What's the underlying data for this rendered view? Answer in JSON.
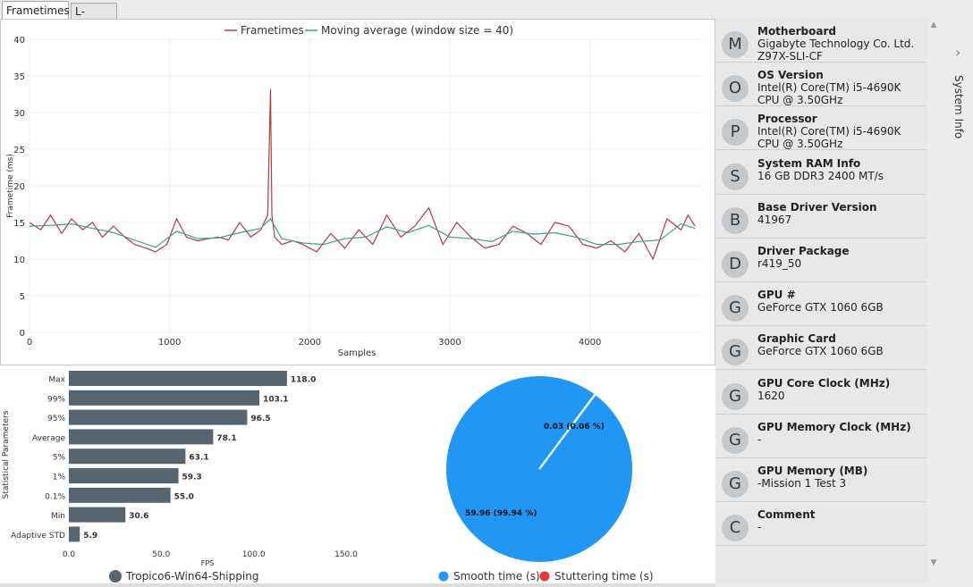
{
  "tabs": [
    {
      "label": "Frametimes",
      "active": true
    },
    {
      "label": "L-shape",
      "active": false
    }
  ],
  "frametime_chart": {
    "type": "line",
    "legend": [
      "Frametimes",
      "Moving average (window size = 40)"
    ],
    "colors": {
      "frametimes": "#b23a48",
      "moving_avg": "#3aa28a"
    },
    "xlabel": "Samples",
    "ylabel": "Frametime (ms)",
    "xlim": [
      0,
      4800
    ],
    "ylim": [
      0,
      40
    ],
    "xticks": [
      "0",
      "1000",
      "2000",
      "3000",
      "4000"
    ],
    "yticks": [
      "0",
      "5",
      "10",
      "15",
      "20",
      "25",
      "30",
      "35",
      "40"
    ],
    "x_values": [
      0,
      1000,
      2000,
      3000,
      4000
    ]
  },
  "chart_data": [
    {
      "type": "line",
      "title": "",
      "xlabel": "Samples",
      "ylabel": "Frametime (ms)",
      "xlim": [
        0,
        4800
      ],
      "ylim": [
        0,
        40
      ],
      "series": [
        {
          "name": "Frametimes",
          "x": [
            0,
            80,
            150,
            230,
            300,
            380,
            450,
            520,
            600,
            680,
            750,
            830,
            900,
            980,
            1050,
            1120,
            1200,
            1280,
            1350,
            1420,
            1500,
            1580,
            1650,
            1700,
            1720,
            1730,
            1750,
            1800,
            1880,
            1950,
            2050,
            2150,
            2250,
            2350,
            2450,
            2550,
            2650,
            2750,
            2850,
            2950,
            3050,
            3150,
            3250,
            3350,
            3450,
            3550,
            3650,
            3750,
            3850,
            3950,
            4050,
            4150,
            4250,
            4350,
            4450,
            4550,
            4650,
            4700,
            4750
          ],
          "values": [
            15,
            14,
            16,
            13.5,
            15.5,
            14,
            15,
            13,
            14.5,
            13,
            12,
            11.5,
            11,
            12,
            15.5,
            13,
            12.5,
            12.8,
            13,
            12.6,
            15,
            13,
            14,
            16,
            33.2,
            16,
            13,
            12,
            12.5,
            12,
            11,
            13.5,
            11.5,
            14,
            12,
            16,
            13,
            14.5,
            17,
            12,
            15,
            13,
            11.5,
            12,
            14.5,
            13.5,
            12,
            15,
            14.5,
            12,
            11.5,
            12.5,
            11,
            13.5,
            10,
            15.5,
            14,
            16,
            14.5
          ]
        },
        {
          "name": "Moving average (window size = 40)",
          "x": [
            0,
            150,
            300,
            450,
            600,
            750,
            900,
            1050,
            1200,
            1350,
            1500,
            1650,
            1720,
            1800,
            1950,
            2100,
            2250,
            2400,
            2550,
            2700,
            2850,
            3000,
            3150,
            3300,
            3450,
            3600,
            3750,
            3900,
            4050,
            4200,
            4350,
            4500,
            4650,
            4750
          ],
          "values": [
            14.5,
            14.6,
            14.8,
            14.2,
            13.6,
            12.6,
            11.6,
            13.8,
            12.8,
            12.9,
            13.6,
            14.2,
            15.5,
            12.8,
            12.2,
            12,
            12.8,
            13,
            14.4,
            13.6,
            14.6,
            13,
            12.8,
            12.4,
            13.8,
            13.4,
            13.6,
            13,
            12,
            12,
            12.4,
            12.6,
            14.8,
            14.2
          ]
        }
      ]
    },
    {
      "type": "bar",
      "orientation": "horizontal",
      "title": "",
      "xlabel": "FPS",
      "ylabel": "Statistical Parameters",
      "xlim": [
        0,
        150
      ],
      "xticks": [
        "0.0",
        "50.0",
        "100.0",
        "150.0"
      ],
      "categories": [
        "Max",
        "99%",
        "95%",
        "Average",
        "5%",
        "1%",
        "0.1%",
        "Min",
        "Adaptive STD"
      ],
      "values": [
        118.0,
        103.1,
        96.5,
        78.1,
        63.1,
        59.3,
        55.0,
        30.6,
        5.9
      ],
      "value_labels": [
        "118.0",
        "103.1",
        "96.5",
        "78.1",
        "63.1",
        "59.3",
        "55.0",
        "30.6",
        "5.9"
      ],
      "series_name": "Tropico6-Win64-Shipping",
      "color": "#566571"
    },
    {
      "type": "pie",
      "title": "",
      "categories": [
        "Smooth time (s)",
        "Stuttering time (s)"
      ],
      "values": [
        59.96,
        0.03
      ],
      "labels": [
        "59.96 (99.94 %)",
        "0.03 (0.06 %)"
      ],
      "colors": [
        "#2196f3",
        "#e53935"
      ]
    }
  ],
  "bar_legend": "Tropico6-Win64-Shipping",
  "pie_legend": [
    "Smooth time (s)",
    "Stuttering time (s)"
  ],
  "system_info": {
    "label": "System Info",
    "items": [
      {
        "initial": "M",
        "title": "Motherboard",
        "value": "Gigabyte Technology Co. Ltd. Z97X-SLI-CF"
      },
      {
        "initial": "O",
        "title": "OS Version",
        "value": "Intel(R) Core(TM) i5-4690K CPU @ 3.50GHz"
      },
      {
        "initial": "P",
        "title": "Processor",
        "value": "Intel(R) Core(TM) i5-4690K CPU @ 3.50GHz"
      },
      {
        "initial": "S",
        "title": "System RAM Info",
        "value": "16 GB DDR3 2400 MT/s"
      },
      {
        "initial": "B",
        "title": "Base Driver Version",
        "value": "41967"
      },
      {
        "initial": "D",
        "title": "Driver Package",
        "value": "r419_50"
      },
      {
        "initial": "G",
        "title": "GPU #",
        "value": "GeForce GTX 1060 6GB"
      },
      {
        "initial": "G",
        "title": "Graphic Card",
        "value": "GeForce GTX 1060 6GB"
      },
      {
        "initial": "G",
        "title": "GPU Core Clock (MHz)",
        "value": "1620"
      },
      {
        "initial": "G",
        "title": "GPU Memory Clock (MHz)",
        "value": "-"
      },
      {
        "initial": "G",
        "title": "GPU Memory (MB)",
        "value": "-Mission 1 Test 3"
      },
      {
        "initial": "C",
        "title": "Comment",
        "value": "-"
      }
    ]
  }
}
